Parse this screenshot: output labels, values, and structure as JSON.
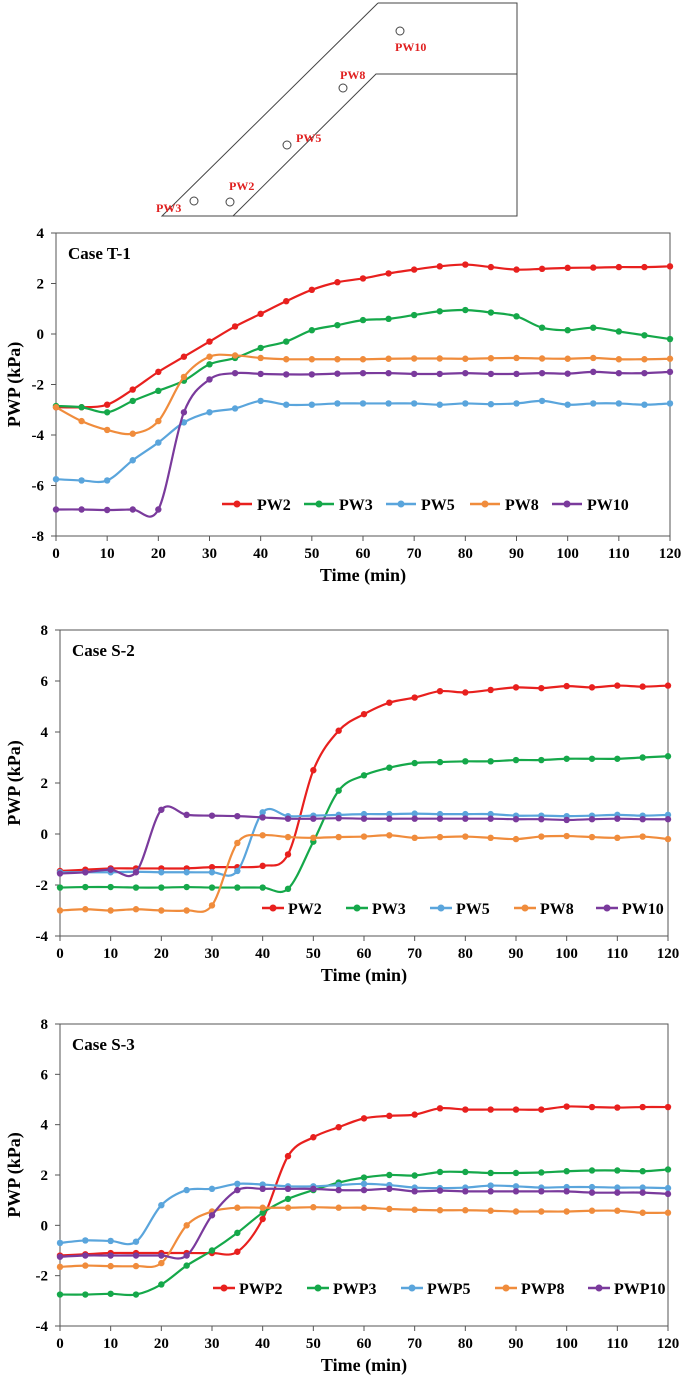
{
  "diagram": {
    "probes": [
      "PW3",
      "PW2",
      "PW5",
      "PW8",
      "PW10"
    ]
  },
  "chart_data": [
    {
      "type": "line",
      "title": "Case T-1",
      "xlabel": "Time (min)",
      "ylabel": "PWP (kPa)",
      "xlim": [
        0,
        120
      ],
      "ylim": [
        -8,
        4
      ],
      "xticks": [
        0,
        10,
        20,
        30,
        40,
        50,
        60,
        70,
        80,
        90,
        100,
        110,
        120
      ],
      "yticks": [
        -8,
        -6,
        -4,
        -2,
        0,
        2,
        4
      ],
      "legend": "bottom-right",
      "series": [
        {
          "name": "PW2",
          "color": "#e8201e",
          "x": [
            0,
            5,
            10,
            15,
            20,
            25,
            30,
            35,
            40,
            45,
            50,
            55,
            60,
            65,
            70,
            75,
            80,
            85,
            90,
            95,
            100,
            105,
            110,
            115,
            120
          ],
          "y": [
            -2.9,
            -2.9,
            -2.8,
            -2.2,
            -1.5,
            -0.9,
            -0.3,
            0.3,
            0.8,
            1.3,
            1.75,
            2.05,
            2.2,
            2.4,
            2.55,
            2.68,
            2.75,
            2.65,
            2.55,
            2.58,
            2.62,
            2.63,
            2.65,
            2.65,
            2.68
          ]
        },
        {
          "name": "PW3",
          "color": "#15a84a",
          "x": [
            0,
            5,
            10,
            15,
            20,
            25,
            30,
            35,
            40,
            45,
            50,
            55,
            60,
            65,
            70,
            75,
            80,
            85,
            90,
            95,
            100,
            105,
            110,
            115,
            120
          ],
          "y": [
            -2.85,
            -2.9,
            -3.1,
            -2.65,
            -2.25,
            -1.85,
            -1.2,
            -0.95,
            -0.55,
            -0.3,
            0.15,
            0.35,
            0.55,
            0.6,
            0.75,
            0.9,
            0.95,
            0.85,
            0.7,
            0.25,
            0.15,
            0.25,
            0.1,
            -0.05,
            -0.2
          ]
        },
        {
          "name": "PW5",
          "color": "#5aa5dc",
          "x": [
            0,
            5,
            10,
            15,
            20,
            25,
            30,
            35,
            40,
            45,
            50,
            55,
            60,
            65,
            70,
            75,
            80,
            85,
            90,
            95,
            100,
            105,
            110,
            115,
            120
          ],
          "y": [
            -5.75,
            -5.8,
            -5.8,
            -5.0,
            -4.3,
            -3.5,
            -3.1,
            -2.95,
            -2.65,
            -2.8,
            -2.8,
            -2.75,
            -2.75,
            -2.75,
            -2.75,
            -2.8,
            -2.75,
            -2.78,
            -2.75,
            -2.65,
            -2.8,
            -2.75,
            -2.75,
            -2.8,
            -2.75
          ]
        },
        {
          "name": "PW8",
          "color": "#f08c3c",
          "x": [
            0,
            5,
            10,
            15,
            20,
            25,
            30,
            35,
            40,
            45,
            50,
            55,
            60,
            65,
            70,
            75,
            80,
            85,
            90,
            95,
            100,
            105,
            110,
            115,
            120
          ],
          "y": [
            -2.9,
            -3.45,
            -3.8,
            -3.95,
            -3.45,
            -1.7,
            -0.9,
            -0.85,
            -0.95,
            -1.0,
            -1.0,
            -1.0,
            -1.0,
            -0.98,
            -0.97,
            -0.97,
            -0.98,
            -0.96,
            -0.95,
            -0.97,
            -0.98,
            -0.95,
            -1.0,
            -1.0,
            -0.98
          ]
        },
        {
          "name": "PW10",
          "color": "#7a3a9c",
          "x": [
            0,
            5,
            10,
            15,
            20,
            25,
            30,
            35,
            40,
            45,
            50,
            55,
            60,
            65,
            70,
            75,
            80,
            85,
            90,
            95,
            100,
            105,
            110,
            115,
            120
          ],
          "y": [
            -6.95,
            -6.95,
            -6.97,
            -6.95,
            -6.95,
            -3.1,
            -1.8,
            -1.55,
            -1.58,
            -1.6,
            -1.6,
            -1.57,
            -1.55,
            -1.55,
            -1.58,
            -1.58,
            -1.55,
            -1.58,
            -1.58,
            -1.55,
            -1.57,
            -1.5,
            -1.55,
            -1.55,
            -1.5
          ]
        }
      ]
    },
    {
      "type": "line",
      "title": "Case S-2",
      "xlabel": "Time (min)",
      "ylabel": "PWP (kPa)",
      "xlim": [
        0,
        120
      ],
      "ylim": [
        -4,
        8
      ],
      "xticks": [
        0,
        10,
        20,
        30,
        40,
        50,
        60,
        70,
        80,
        90,
        100,
        110,
        120
      ],
      "yticks": [
        -4,
        -2,
        0,
        2,
        4,
        6,
        8
      ],
      "legend": "bottom-right",
      "series": [
        {
          "name": "PW2",
          "color": "#e8201e",
          "x": [
            0,
            5,
            10,
            15,
            20,
            25,
            30,
            35,
            40,
            45,
            50,
            55,
            60,
            65,
            70,
            75,
            80,
            85,
            90,
            95,
            100,
            105,
            110,
            115,
            120
          ],
          "y": [
            -1.45,
            -1.4,
            -1.35,
            -1.35,
            -1.35,
            -1.35,
            -1.3,
            -1.3,
            -1.25,
            -0.8,
            2.5,
            4.05,
            4.7,
            5.15,
            5.35,
            5.6,
            5.55,
            5.65,
            5.75,
            5.72,
            5.8,
            5.75,
            5.82,
            5.78,
            5.82
          ]
        },
        {
          "name": "PW3",
          "color": "#15a84a",
          "x": [
            0,
            5,
            10,
            15,
            20,
            25,
            30,
            35,
            40,
            45,
            50,
            55,
            60,
            65,
            70,
            75,
            80,
            85,
            90,
            95,
            100,
            105,
            110,
            115,
            120
          ],
          "y": [
            -2.1,
            -2.08,
            -2.08,
            -2.1,
            -2.1,
            -2.08,
            -2.1,
            -2.1,
            -2.1,
            -2.15,
            -0.3,
            1.7,
            2.3,
            2.6,
            2.78,
            2.82,
            2.85,
            2.85,
            2.9,
            2.9,
            2.95,
            2.95,
            2.95,
            3.0,
            3.05
          ]
        },
        {
          "name": "PW5",
          "color": "#5aa5dc",
          "x": [
            0,
            5,
            10,
            15,
            20,
            25,
            30,
            35,
            40,
            45,
            50,
            55,
            60,
            65,
            70,
            75,
            80,
            85,
            90,
            95,
            100,
            105,
            110,
            115,
            120
          ],
          "y": [
            -1.5,
            -1.5,
            -1.5,
            -1.48,
            -1.5,
            -1.5,
            -1.5,
            -1.45,
            0.85,
            0.7,
            0.72,
            0.75,
            0.78,
            0.78,
            0.8,
            0.78,
            0.78,
            0.78,
            0.72,
            0.72,
            0.7,
            0.72,
            0.75,
            0.72,
            0.75
          ]
        },
        {
          "name": "PW8",
          "color": "#f08c3c",
          "x": [
            0,
            5,
            10,
            15,
            20,
            25,
            30,
            35,
            40,
            45,
            50,
            55,
            60,
            65,
            70,
            75,
            80,
            85,
            90,
            95,
            100,
            105,
            110,
            115,
            120
          ],
          "y": [
            -3.0,
            -2.95,
            -3.0,
            -2.95,
            -3.0,
            -3.0,
            -2.8,
            -0.35,
            -0.05,
            -0.12,
            -0.15,
            -0.12,
            -0.1,
            -0.05,
            -0.15,
            -0.12,
            -0.1,
            -0.15,
            -0.2,
            -0.1,
            -0.08,
            -0.12,
            -0.15,
            -0.1,
            -0.2
          ]
        },
        {
          "name": "PW10",
          "color": "#7a3a9c",
          "x": [
            0,
            5,
            10,
            15,
            20,
            25,
            30,
            35,
            40,
            45,
            50,
            55,
            60,
            65,
            70,
            75,
            80,
            85,
            90,
            95,
            100,
            105,
            110,
            115,
            120
          ],
          "y": [
            -1.55,
            -1.5,
            -1.4,
            -1.5,
            0.95,
            0.75,
            0.72,
            0.7,
            0.65,
            0.6,
            0.6,
            0.62,
            0.6,
            0.6,
            0.6,
            0.6,
            0.6,
            0.6,
            0.58,
            0.58,
            0.55,
            0.58,
            0.6,
            0.58,
            0.58
          ]
        }
      ]
    },
    {
      "type": "line",
      "title": "Case S-3",
      "xlabel": "Time (min)",
      "ylabel": "PWP (kPa)",
      "xlim": [
        0,
        120
      ],
      "ylim": [
        -4,
        8
      ],
      "xticks": [
        0,
        10,
        20,
        30,
        40,
        50,
        60,
        70,
        80,
        90,
        100,
        110,
        120
      ],
      "yticks": [
        -4,
        -2,
        0,
        2,
        4,
        6,
        8
      ],
      "legend": "bottom-right",
      "series": [
        {
          "name": "PWP2",
          "color": "#e8201e",
          "x": [
            0,
            5,
            10,
            15,
            20,
            25,
            30,
            35,
            40,
            45,
            50,
            55,
            60,
            65,
            70,
            75,
            80,
            85,
            90,
            95,
            100,
            105,
            110,
            115,
            120
          ],
          "y": [
            -1.2,
            -1.15,
            -1.1,
            -1.1,
            -1.1,
            -1.1,
            -1.1,
            -1.05,
            0.25,
            2.75,
            3.5,
            3.9,
            4.25,
            4.35,
            4.4,
            4.65,
            4.6,
            4.6,
            4.6,
            4.6,
            4.72,
            4.7,
            4.68,
            4.7,
            4.7
          ]
        },
        {
          "name": "PWP3",
          "color": "#15a84a",
          "x": [
            0,
            5,
            10,
            15,
            20,
            25,
            30,
            35,
            40,
            45,
            50,
            55,
            60,
            65,
            70,
            75,
            80,
            85,
            90,
            95,
            100,
            105,
            110,
            115,
            120
          ],
          "y": [
            -2.75,
            -2.75,
            -2.72,
            -2.75,
            -2.35,
            -1.6,
            -1.0,
            -0.3,
            0.5,
            1.05,
            1.4,
            1.7,
            1.9,
            2.0,
            1.98,
            2.12,
            2.12,
            2.08,
            2.08,
            2.1,
            2.15,
            2.18,
            2.18,
            2.15,
            2.22
          ]
        },
        {
          "name": "PWP5",
          "color": "#5aa5dc",
          "x": [
            0,
            5,
            10,
            15,
            20,
            25,
            30,
            35,
            40,
            45,
            50,
            55,
            60,
            65,
            70,
            75,
            80,
            85,
            90,
            95,
            100,
            105,
            110,
            115,
            120
          ],
          "y": [
            -0.7,
            -0.6,
            -0.62,
            -0.65,
            0.8,
            1.4,
            1.45,
            1.65,
            1.62,
            1.55,
            1.55,
            1.6,
            1.65,
            1.6,
            1.5,
            1.48,
            1.5,
            1.58,
            1.55,
            1.5,
            1.52,
            1.52,
            1.5,
            1.5,
            1.48
          ]
        },
        {
          "name": "PWP8",
          "color": "#f08c3c",
          "x": [
            0,
            5,
            10,
            15,
            20,
            25,
            30,
            35,
            40,
            45,
            50,
            55,
            60,
            65,
            70,
            75,
            80,
            85,
            90,
            95,
            100,
            105,
            110,
            115,
            120
          ],
          "y": [
            -1.65,
            -1.6,
            -1.62,
            -1.62,
            -1.5,
            0.0,
            0.55,
            0.7,
            0.7,
            0.7,
            0.72,
            0.7,
            0.7,
            0.65,
            0.62,
            0.6,
            0.6,
            0.58,
            0.55,
            0.55,
            0.55,
            0.58,
            0.58,
            0.5,
            0.5
          ]
        },
        {
          "name": "PWP10",
          "color": "#7a3a9c",
          "x": [
            0,
            5,
            10,
            15,
            20,
            25,
            30,
            35,
            40,
            45,
            50,
            55,
            60,
            65,
            70,
            75,
            80,
            85,
            90,
            95,
            100,
            105,
            110,
            115,
            120
          ],
          "y": [
            -1.25,
            -1.2,
            -1.2,
            -1.2,
            -1.2,
            -1.2,
            0.4,
            1.4,
            1.45,
            1.45,
            1.45,
            1.4,
            1.4,
            1.45,
            1.35,
            1.38,
            1.35,
            1.35,
            1.35,
            1.35,
            1.35,
            1.3,
            1.3,
            1.3,
            1.25
          ]
        }
      ]
    }
  ]
}
